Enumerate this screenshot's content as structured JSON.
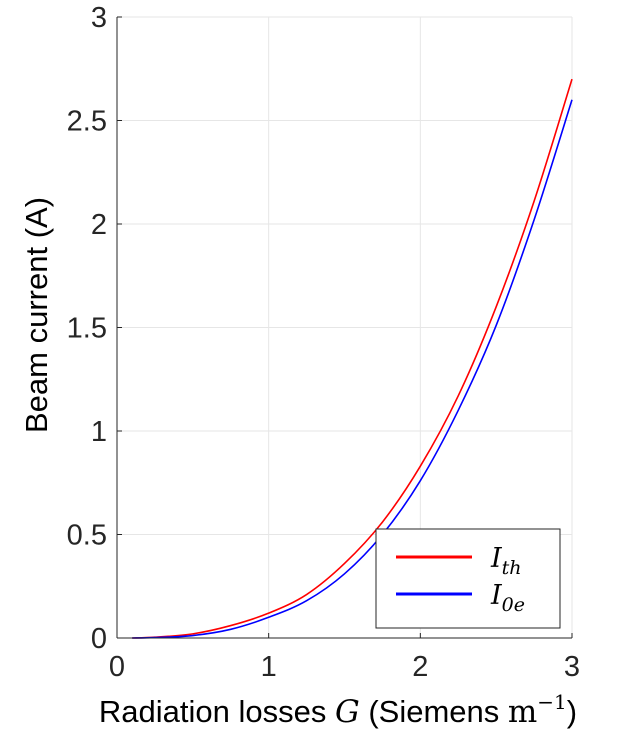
{
  "chart_data": {
    "type": "line",
    "xlabel": {
      "prefix": "Radiation losses ",
      "symbol": "G",
      "middle": " (Siemens ",
      "unit": "m",
      "exponent": "−1",
      "suffix": ")"
    },
    "ylabel": "Beam current (A)",
    "xlim": [
      0,
      3
    ],
    "ylim": [
      0,
      3
    ],
    "x_ticks": [
      "0",
      "1",
      "2",
      "3"
    ],
    "y_ticks": [
      "0",
      "0.5",
      "1",
      "1.5",
      "2",
      "2.5",
      "3"
    ],
    "grid": true,
    "legend_position": "bottom-right",
    "x": [
      0.1,
      0.25,
      0.5,
      0.75,
      1.0,
      1.25,
      1.5,
      1.75,
      2.0,
      2.25,
      2.5,
      2.75,
      3.0
    ],
    "series": [
      {
        "name": "I_th",
        "label_main": "I",
        "label_sub": "th",
        "color": "#ff0000",
        "values": [
          0.0,
          0.004,
          0.02,
          0.06,
          0.12,
          0.21,
          0.36,
          0.56,
          0.83,
          1.17,
          1.6,
          2.11,
          2.7
        ]
      },
      {
        "name": "I_0e",
        "label_main": "I",
        "label_sub": "0e",
        "color": "#0000ff",
        "values": [
          0.0,
          0.002,
          0.012,
          0.042,
          0.1,
          0.18,
          0.31,
          0.5,
          0.76,
          1.1,
          1.51,
          2.02,
          2.6
        ]
      }
    ]
  }
}
